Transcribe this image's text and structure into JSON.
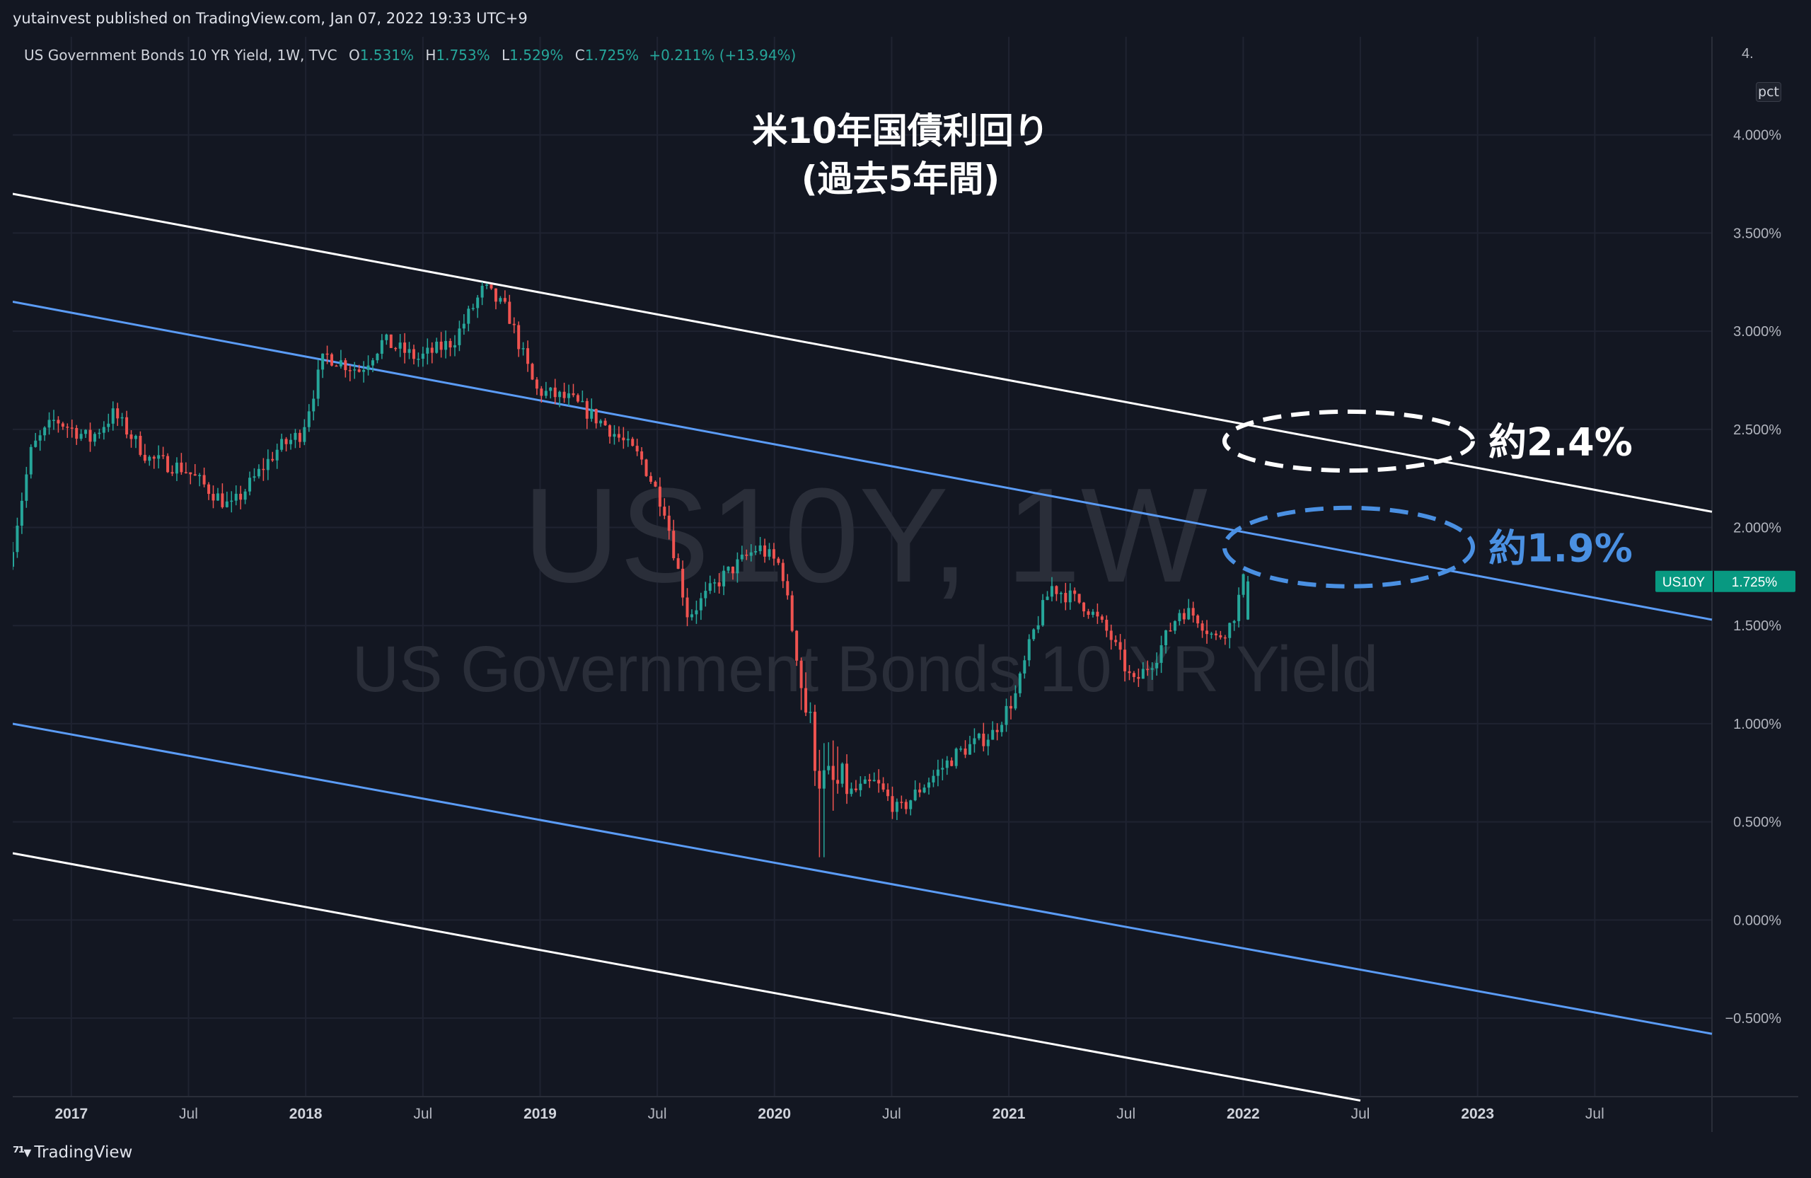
{
  "header": {
    "publisher_text": "yutainvest published on TradingView.com, Jan 07, 2022 19:33 UTC+9"
  },
  "legend": {
    "symbol_label": "US Government Bonds 10 YR Yield, 1W, TVC",
    "o_key": "O",
    "o_val": "1.531%",
    "h_key": "H",
    "h_val": "1.753%",
    "l_key": "L",
    "l_val": "1.529%",
    "c_key": "C",
    "c_val": "1.725%",
    "change": "+0.211% (+13.94%)"
  },
  "scale_button": "pct",
  "footer": {
    "logo_text": "TradingView"
  },
  "colors": {
    "background": "#131722",
    "up": "#26a69a",
    "down": "#ef5350",
    "channel_outer": "#ffffff",
    "channel_inner": "#5b9cf6",
    "ellipse_upper": "#ffffff",
    "ellipse_lower": "#4a90e2"
  },
  "chart_data": {
    "type": "candlestick",
    "watermark_symbol": "US10Y, 1W",
    "watermark_name": "US Government Bonds 10 YR Yield",
    "title_line1": "米10年国債利回り",
    "title_line2": "(過去5年間)",
    "y_axis": {
      "min": -0.9,
      "max": 4.5,
      "ticks": [
        4.0,
        3.5,
        3.0,
        2.5,
        2.0,
        1.5,
        1.0,
        0.5,
        0.0,
        -0.5
      ],
      "tick_labels": [
        "4.000%",
        "3.500%",
        "3.000%",
        "2.500%",
        "2.000%",
        "1.500%",
        "1.000%",
        "0.500%",
        "0.000%",
        "−0.500%"
      ],
      "top_partial_label": "4."
    },
    "x_axis": {
      "start": 2016.75,
      "end": 2024.0,
      "ticks": [
        2017.0,
        2017.5,
        2018.0,
        2018.5,
        2019.0,
        2019.5,
        2020.0,
        2020.5,
        2021.0,
        2021.5,
        2022.0,
        2022.5,
        2023.0,
        2023.5
      ],
      "tick_labels": [
        "2017",
        "Jul",
        "2018",
        "Jul",
        "2019",
        "Jul",
        "2020",
        "Jul",
        "2021",
        "Jul",
        "2022",
        "Jul",
        "2023",
        "Jul"
      ],
      "year_ticks": [
        "2017",
        "2018",
        "2019",
        "2020",
        "2021",
        "2022",
        "2023"
      ]
    },
    "price_tag": {
      "symbol": "US10Y",
      "value": "1.725%",
      "y": 1.725
    },
    "trend_lines": [
      {
        "name": "upper-outer",
        "color": "white",
        "x1": 2016.75,
        "y1": 3.7,
        "x2": 2024.0,
        "y2": 2.08
      },
      {
        "name": "upper-inner",
        "color": "blue",
        "x1": 2016.75,
        "y1": 3.15,
        "x2": 2024.0,
        "y2": 1.53
      },
      {
        "name": "lower-inner",
        "color": "blue",
        "x1": 2016.75,
        "y1": 1.0,
        "x2": 2024.0,
        "y2": -0.58
      },
      {
        "name": "lower-outer",
        "color": "white",
        "x1": 2016.75,
        "y1": 0.34,
        "x2": 2022.5,
        "y2": -0.92
      }
    ],
    "annotations": [
      {
        "text": "約2.4%",
        "color": "#ffffff",
        "ellipse_cx": 2022.45,
        "ellipse_cy": 2.44,
        "ellipse_rx_years": 0.53,
        "ellipse_ry_pct": 0.15
      },
      {
        "text": "約1.9%",
        "color": "#4a90e2",
        "ellipse_cx": 2022.45,
        "ellipse_cy": 1.9,
        "ellipse_rx_years": 0.53,
        "ellipse_ry_pct": 0.2
      }
    ],
    "key_points": [
      [
        2016.75,
        1.8
      ],
      [
        2016.85,
        2.4
      ],
      [
        2016.95,
        2.55
      ],
      [
        2017.1,
        2.45
      ],
      [
        2017.2,
        2.58
      ],
      [
        2017.35,
        2.35
      ],
      [
        2017.5,
        2.3
      ],
      [
        2017.7,
        2.1
      ],
      [
        2017.9,
        2.4
      ],
      [
        2018.0,
        2.48
      ],
      [
        2018.1,
        2.88
      ],
      [
        2018.25,
        2.8
      ],
      [
        2018.35,
        2.95
      ],
      [
        2018.5,
        2.86
      ],
      [
        2018.65,
        2.95
      ],
      [
        2018.78,
        3.22
      ],
      [
        2018.88,
        3.1
      ],
      [
        2019.0,
        2.7
      ],
      [
        2019.15,
        2.65
      ],
      [
        2019.3,
        2.52
      ],
      [
        2019.45,
        2.35
      ],
      [
        2019.55,
        2.1
      ],
      [
        2019.65,
        1.55
      ],
      [
        2019.8,
        1.75
      ],
      [
        2019.95,
        1.9
      ],
      [
        2020.05,
        1.8
      ],
      [
        2020.15,
        1.1
      ],
      [
        2020.22,
        0.7
      ],
      [
        2020.35,
        0.65
      ],
      [
        2020.45,
        0.7
      ],
      [
        2020.55,
        0.55
      ],
      [
        2020.65,
        0.68
      ],
      [
        2020.8,
        0.85
      ],
      [
        2020.95,
        0.95
      ],
      [
        2021.05,
        1.15
      ],
      [
        2021.12,
        1.45
      ],
      [
        2021.2,
        1.7
      ],
      [
        2021.35,
        1.6
      ],
      [
        2021.45,
        1.45
      ],
      [
        2021.55,
        1.2
      ],
      [
        2021.65,
        1.35
      ],
      [
        2021.75,
        1.58
      ],
      [
        2021.82,
        1.55
      ],
      [
        2021.9,
        1.43
      ],
      [
        2021.97,
        1.51
      ],
      [
        2022.02,
        1.725
      ]
    ],
    "candle_count": 272,
    "last_candle": {
      "x": 2022.02,
      "o": 1.531,
      "h": 1.753,
      "l": 1.529,
      "c": 1.725
    }
  }
}
